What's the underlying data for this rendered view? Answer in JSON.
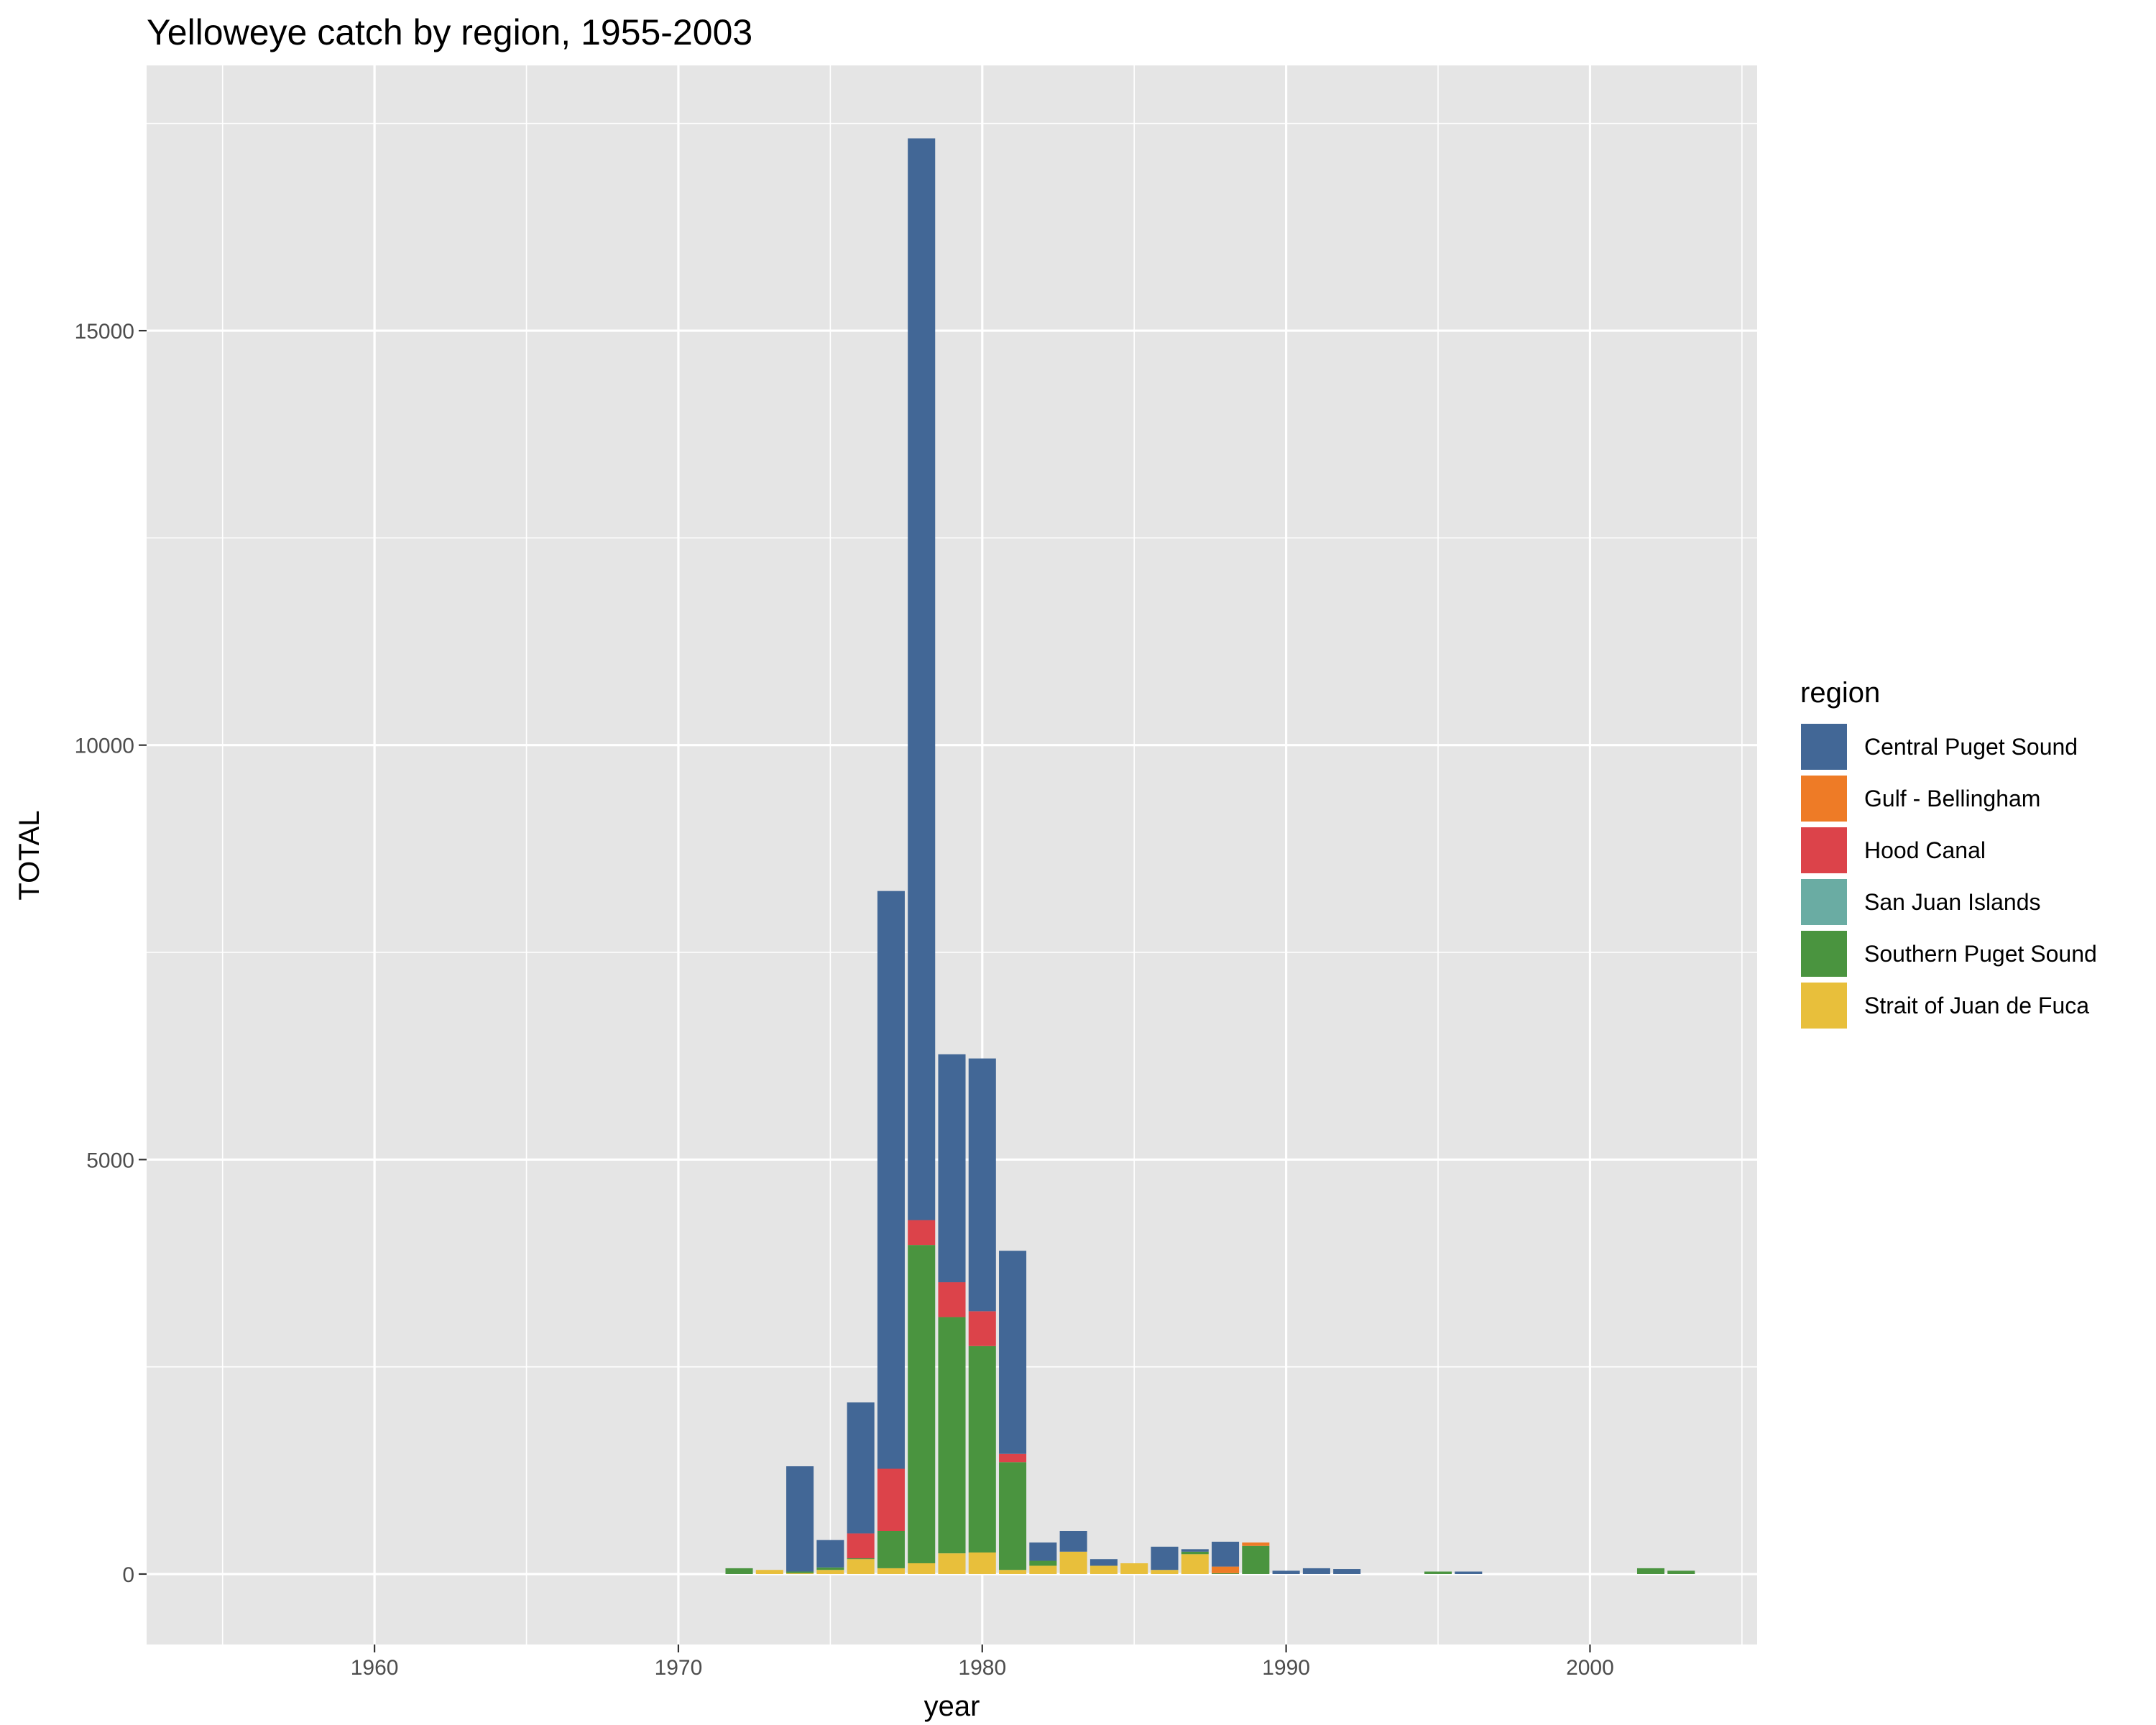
{
  "chart_data": {
    "type": "bar",
    "stacked": true,
    "title": "Yelloweye catch by region, 1955-2003",
    "xlabel": "year",
    "ylabel": "TOTAL",
    "xlim": [
      1952.5,
      2005.5
    ],
    "ylim": [
      -850,
      18200
    ],
    "x_ticks": [
      1960,
      1970,
      1980,
      1990,
      2000
    ],
    "x_tick_labels": [
      "1960",
      "1970",
      "1980",
      "1990",
      "2000"
    ],
    "x_minor_ticks": [
      1955,
      1965,
      1975,
      1985,
      1995,
      2005
    ],
    "y_ticks": [
      0,
      5000,
      10000,
      15000
    ],
    "y_tick_labels": [
      "0",
      "5000",
      "10000",
      "15000"
    ],
    "y_minor_ticks": [
      2500,
      7500,
      12500,
      17500
    ],
    "grid": true,
    "legend": {
      "title": "region",
      "placement": "right",
      "entries": [
        "Central Puget Sound",
        "Gulf - Bellingham",
        "Hood Canal",
        "San Juan Islands",
        "Southern Puget Sound",
        "Strait of Juan de Fuca"
      ]
    },
    "colors": {
      "panel_background": "#e5e5e5",
      "grid_line": "#ffffff",
      "Central Puget Sound": "#426796",
      "Gulf - Bellingham": "#ee7b26",
      "Hood Canal": "#dc434a",
      "San Juan Islands": "#6aaca3",
      "Southern Puget Sound": "#4a943f",
      "Strait of Juan de Fuca": "#e8bf3b"
    },
    "stack_order": [
      "Strait of Juan de Fuca",
      "Southern Puget Sound",
      "San Juan Islands",
      "Hood Canal",
      "Gulf - Bellingham",
      "Central Puget Sound"
    ],
    "x": [
      1972,
      1973,
      1974,
      1975,
      1976,
      1977,
      1978,
      1979,
      1980,
      1981,
      1982,
      1983,
      1984,
      1985,
      1986,
      1987,
      1988,
      1989,
      1990,
      1991,
      1992,
      1995,
      1996,
      2002,
      2003
    ],
    "series": [
      {
        "name": "Central Puget Sound",
        "values": [
          0,
          0,
          1270,
          330,
          1580,
          6970,
          13050,
          2750,
          3050,
          2450,
          220,
          250,
          80,
          0,
          280,
          30,
          300,
          0,
          40,
          70,
          60,
          0,
          30,
          0,
          0
        ]
      },
      {
        "name": "Gulf - Bellingham",
        "values": [
          0,
          0,
          0,
          0,
          0,
          0,
          0,
          0,
          0,
          0,
          0,
          0,
          0,
          0,
          0,
          0,
          80,
          40,
          0,
          0,
          0,
          0,
          0,
          0,
          0
        ]
      },
      {
        "name": "Hood Canal",
        "values": [
          0,
          0,
          0,
          0,
          300,
          750,
          300,
          420,
          420,
          100,
          0,
          0,
          0,
          0,
          0,
          0,
          0,
          0,
          0,
          0,
          0,
          0,
          0,
          0,
          0
        ]
      },
      {
        "name": "San Juan Islands",
        "values": [
          0,
          0,
          0,
          0,
          0,
          0,
          0,
          0,
          0,
          0,
          0,
          0,
          0,
          0,
          0,
          0,
          0,
          0,
          0,
          0,
          0,
          0,
          0,
          0,
          0
        ]
      },
      {
        "name": "Southern Puget Sound",
        "values": [
          70,
          0,
          20,
          30,
          10,
          450,
          3840,
          2850,
          2490,
          1300,
          60,
          0,
          0,
          0,
          0,
          30,
          10,
          340,
          0,
          0,
          0,
          30,
          0,
          70,
          40
        ]
      },
      {
        "name": "Strait of Juan de Fuca",
        "values": [
          0,
          50,
          10,
          50,
          180,
          70,
          130,
          250,
          260,
          50,
          100,
          270,
          100,
          130,
          50,
          240,
          0,
          0,
          0,
          0,
          0,
          0,
          0,
          0,
          0
        ]
      }
    ]
  }
}
